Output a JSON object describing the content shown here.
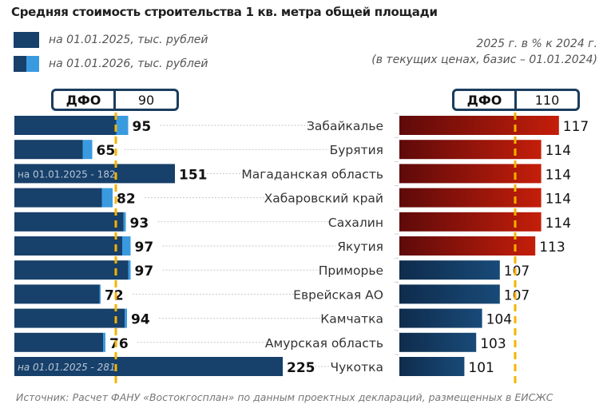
{
  "title": "Средняя стоимость строительства 1 кв. метра общей площади",
  "legend": [
    {
      "label": "на 01.01.2025, тыс. рублей",
      "colors": [
        "#17406a"
      ]
    },
    {
      "label": "на 01.01.2026, тыс. рублей",
      "colors": [
        "#17406a",
        "#3a9ae0"
      ]
    }
  ],
  "right_subtitle_line1": "2025 г. в % к 2024 г.",
  "right_subtitle_line2": "(в текущих ценах, базис – 01.01.2024)",
  "dfo_left": {
    "label": "ДФО",
    "value": "90"
  },
  "dfo_right": {
    "label": "ДФО",
    "value": "110"
  },
  "source": "Источник: Расчет ФАНУ «Востокгосплан» по данным проектных деклараций, размещенных в ЕИСЖС",
  "colors": {
    "dark_blue": "#17406a",
    "light_blue": "#3a9ae0",
    "red_dark": "#5e0a0a",
    "red_light": "#c41e0a",
    "dfo_line": "#f5b400"
  },
  "chart_data": [
    {
      "type": "bar",
      "orientation": "horizontal",
      "title": "Средняя стоимость строительства 1 кв. метра общей площади, тыс. рублей",
      "categories": [
        "Забайкалье",
        "Бурятия",
        "Магаданская область",
        "Хабаровский край",
        "Сахалин",
        "Якутия",
        "Приморье",
        "Еврейская АО",
        "Камчатка",
        "Амурская область",
        "Чукотка"
      ],
      "series": [
        {
          "name": "на 01.01.2025, тыс. рублей",
          "values": [
            85,
            57,
            182,
            73,
            91,
            90,
            95,
            71,
            92,
            74,
            281
          ],
          "note": "values except 182 and 281 estimated from bar lengths"
        },
        {
          "name": "на 01.01.2026, тыс. рублей",
          "values": [
            95,
            65,
            151,
            82,
            93,
            97,
            97,
            72,
            94,
            76,
            225
          ]
        }
      ],
      "data_labels": [
        "95",
        "65",
        "151",
        "82",
        "93",
        "97",
        "97",
        "72",
        "94",
        "76",
        "225"
      ],
      "bar_annotations": {
        "Магаданская область": "на 01.01.2025 - 182",
        "Чукотка": "на 01.01.2025 - 281"
      },
      "reference_line": {
        "label": "ДФО",
        "value": 90
      },
      "truncated_categories": [
        "Магаданская область",
        "Чукотка"
      ]
    },
    {
      "type": "bar",
      "orientation": "horizontal",
      "title": "2025 г. в % к 2024 г. (в текущих ценах, базис – 01.01.2024)",
      "categories": [
        "Забайкалье",
        "Бурятия",
        "Магаданская область",
        "Хабаровский край",
        "Сахалин",
        "Якутия",
        "Приморье",
        "Еврейская АО",
        "Камчатка",
        "Амурская область",
        "Чукотка"
      ],
      "values": [
        117,
        114,
        114,
        114,
        114,
        113,
        107,
        107,
        104,
        103,
        101
      ],
      "data_labels": [
        "117",
        "114",
        "114",
        "114",
        "114",
        "113",
        "107",
        "107",
        "104",
        "103",
        "101"
      ],
      "highlight_above_reference": true,
      "reference_line": {
        "label": "ДФО",
        "value": 110
      },
      "xlim": [
        90,
        120
      ]
    }
  ]
}
